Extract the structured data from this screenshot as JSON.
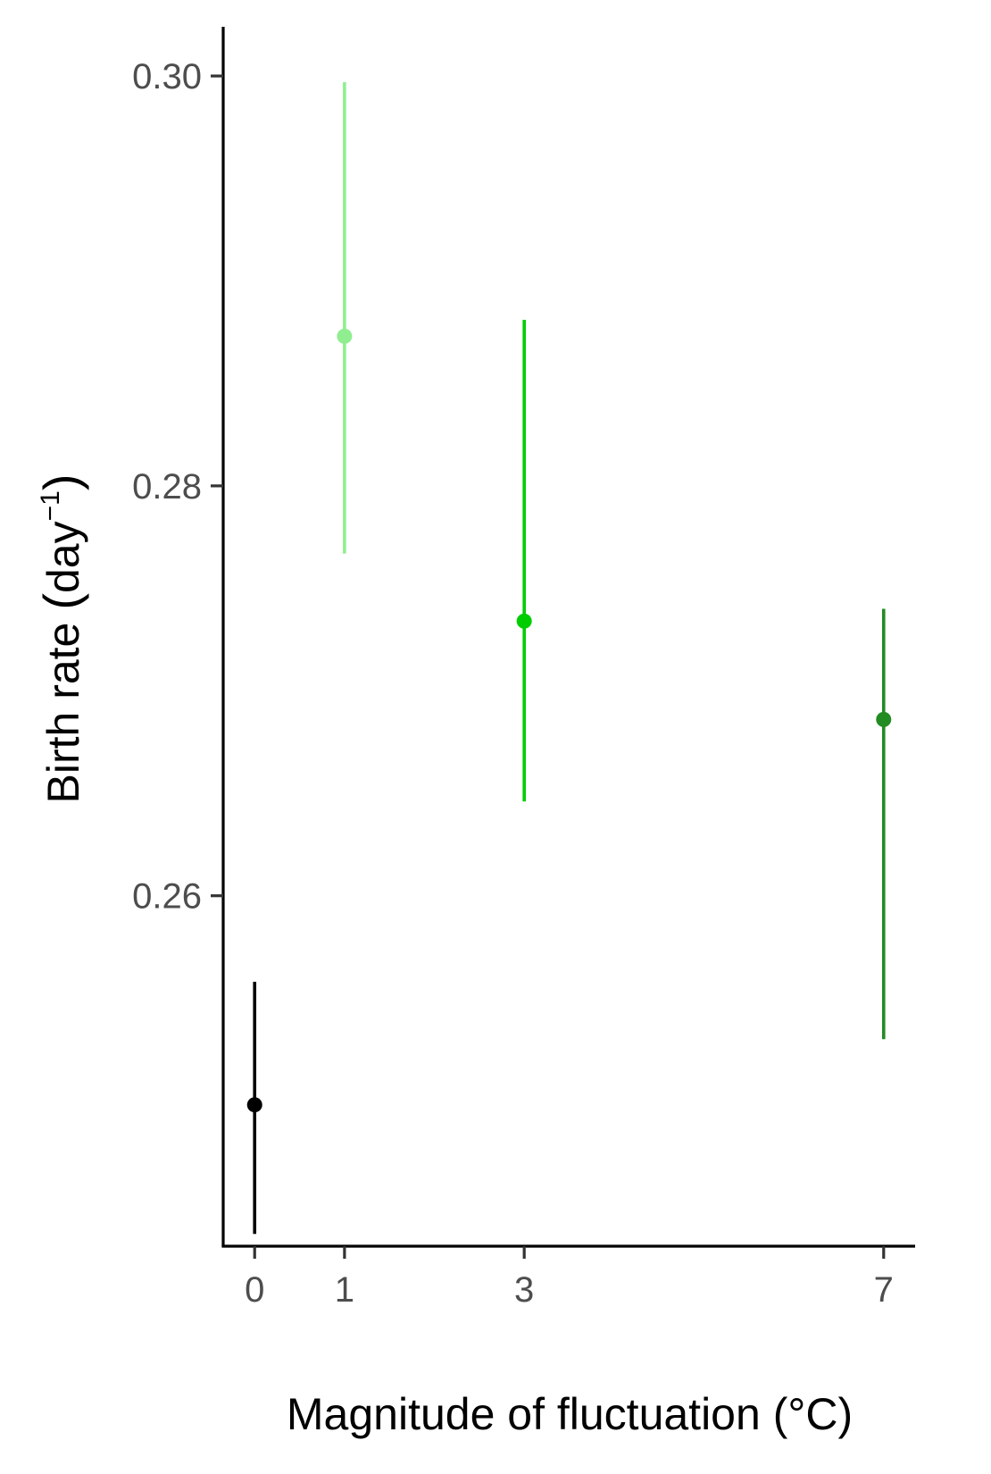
{
  "chart_data": {
    "type": "scatter",
    "title": "",
    "xlabel": "Magnitude of fluctuation (°C)",
    "ylabel": {
      "prefix": "Birth rate",
      "unit": "day",
      "exponent": "−1"
    },
    "xlim": [
      -0.35,
      7.35
    ],
    "ylim": [
      0.2429,
      0.3024
    ],
    "x_ticks": [
      {
        "value": 0,
        "label": "0"
      },
      {
        "value": 1,
        "label": "1"
      },
      {
        "value": 3,
        "label": "3"
      },
      {
        "value": 7,
        "label": "7"
      }
    ],
    "y_ticks": [
      {
        "value": 0.26,
        "label": "0.26"
      },
      {
        "value": 0.28,
        "label": "0.28"
      },
      {
        "value": 0.3,
        "label": "0.30"
      }
    ],
    "grid": false,
    "legend": "none",
    "points": [
      {
        "x": 0,
        "y": 0.2498,
        "ymin": 0.2435,
        "ymax": 0.2558,
        "color": "#000000"
      },
      {
        "x": 1,
        "y": 0.2873,
        "ymin": 0.2767,
        "ymax": 0.2997,
        "color": "#90EE90"
      },
      {
        "x": 3,
        "y": 0.2734,
        "ymin": 0.2646,
        "ymax": 0.2881,
        "color": "#00CD00"
      },
      {
        "x": 7,
        "y": 0.2686,
        "ymin": 0.253,
        "ymax": 0.274,
        "color": "#228B22"
      }
    ]
  }
}
